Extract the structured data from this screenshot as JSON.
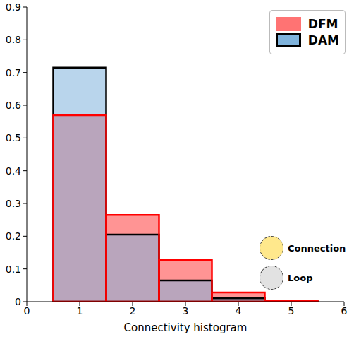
{
  "chart_data": {
    "type": "histogram",
    "xlabel": "Connectivity histogram",
    "bins": [
      0.5,
      1.5,
      2.5,
      3.5,
      4.5,
      5.5
    ],
    "series": [
      {
        "name": "DFM",
        "color": "#ff0000",
        "values": [
          0.57,
          0.265,
          0.127,
          0.028,
          0.004
        ]
      },
      {
        "name": "DAM",
        "color": "#7fb3dc",
        "values": [
          0.715,
          0.205,
          0.065,
          0.01,
          0.001
        ]
      }
    ],
    "xlim": [
      0,
      6
    ],
    "xticks": [
      0,
      1,
      2,
      3,
      4,
      5,
      6
    ],
    "ylim": [
      0,
      0.9
    ],
    "yticks": [
      0,
      0.1,
      0.2,
      0.3,
      0.4,
      0.5,
      0.6,
      0.7,
      0.8,
      0.9
    ],
    "legend": "upper right",
    "annotations": [
      "Connection",
      "Loop"
    ]
  }
}
